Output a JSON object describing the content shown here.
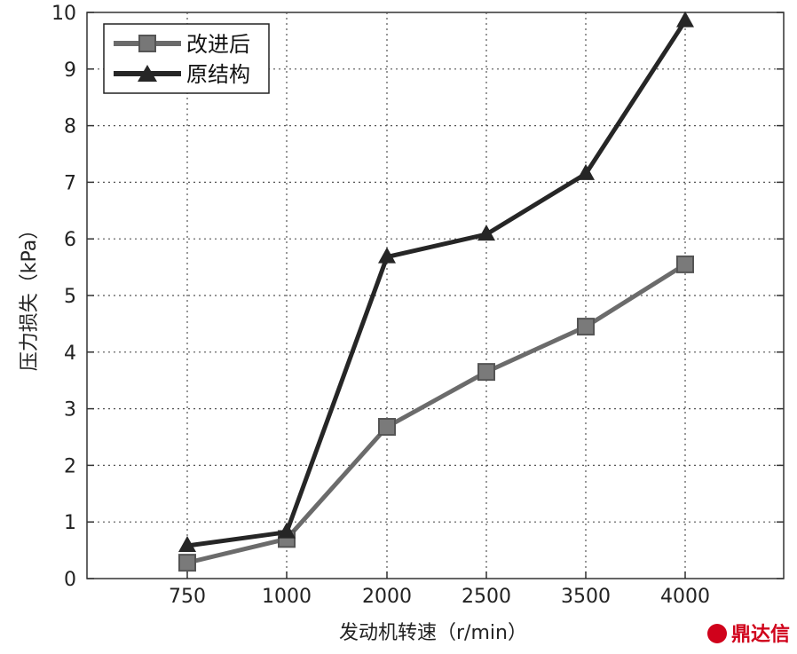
{
  "chart_data": {
    "type": "line",
    "categories": [
      "750",
      "1000",
      "2000",
      "2500",
      "3500",
      "4000"
    ],
    "series": [
      {
        "name": "改进后",
        "values": [
          0.28,
          0.7,
          2.68,
          3.65,
          4.45,
          5.55
        ],
        "color": "#6b6b6b",
        "marker": "square"
      },
      {
        "name": "原结构",
        "values": [
          0.58,
          0.82,
          5.68,
          6.08,
          7.15,
          9.85
        ],
        "color": "#262626",
        "marker": "triangle"
      }
    ],
    "xlabel": "发动机转速（r/min）",
    "ylabel": "压力损失（kPa）",
    "ylim": [
      0,
      10
    ],
    "yticks": [
      "0",
      "1",
      "2",
      "3",
      "4",
      "5",
      "6",
      "7",
      "8",
      "9",
      "10"
    ],
    "grid": true,
    "legend_position": "top-left"
  },
  "watermark": {
    "text": "鼎达信",
    "color": "#d0021b"
  }
}
